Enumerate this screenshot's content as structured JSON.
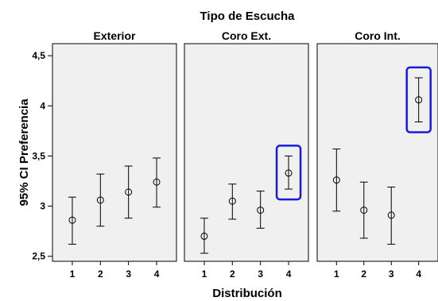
{
  "chart_data": {
    "type": "error-bar",
    "facet_title": "Tipo de Escucha",
    "xlabel": "Distribución",
    "ylabel": "95% CI Preferencia",
    "ylim": [
      2.45,
      4.62
    ],
    "yticks": [
      "2,5",
      "3",
      "3,5",
      "4",
      "4,5"
    ],
    "ytick_values": [
      2.5,
      3.0,
      3.5,
      4.0,
      4.5
    ],
    "x_categories": [
      "1",
      "2",
      "3",
      "4"
    ],
    "panel_background": "#f0f0f0",
    "highlight_color": "#1a1adb",
    "panels": [
      {
        "title": "Exterior",
        "points": [
          {
            "x": "1",
            "mean": 2.86,
            "low": 2.62,
            "high": 3.09
          },
          {
            "x": "2",
            "mean": 3.06,
            "low": 2.8,
            "high": 3.32
          },
          {
            "x": "3",
            "mean": 3.14,
            "low": 2.88,
            "high": 3.4
          },
          {
            "x": "4",
            "mean": 3.24,
            "low": 2.99,
            "high": 3.48
          }
        ],
        "highlight": null
      },
      {
        "title": "Coro Ext.",
        "points": [
          {
            "x": "1",
            "mean": 2.7,
            "low": 2.53,
            "high": 2.88
          },
          {
            "x": "2",
            "mean": 3.05,
            "low": 2.87,
            "high": 3.22
          },
          {
            "x": "3",
            "mean": 2.96,
            "low": 2.78,
            "high": 3.15
          },
          {
            "x": "4",
            "mean": 3.33,
            "low": 3.17,
            "high": 3.5
          }
        ],
        "highlight": "4"
      },
      {
        "title": "Coro Int.",
        "points": [
          {
            "x": "1",
            "mean": 3.26,
            "low": 2.95,
            "high": 3.57
          },
          {
            "x": "2",
            "mean": 2.96,
            "low": 2.68,
            "high": 3.24
          },
          {
            "x": "3",
            "mean": 2.91,
            "low": 2.62,
            "high": 3.19
          },
          {
            "x": "4",
            "mean": 4.06,
            "low": 3.84,
            "high": 4.28
          }
        ],
        "highlight": "4"
      }
    ]
  }
}
